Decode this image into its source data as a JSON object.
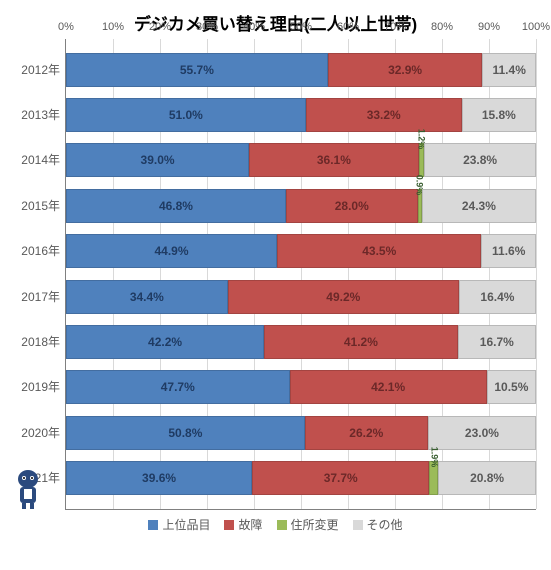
{
  "chart": {
    "type": "stacked-bar-horizontal",
    "title": "デジカメ買い替え理由(二人以上世帯)",
    "title_fontsize": 17,
    "xaxis": {
      "min": 0,
      "max": 100,
      "step": 10,
      "suffix": "%"
    },
    "series": [
      {
        "key": "upper",
        "label": "上位品目",
        "color": "#4f81bd"
      },
      {
        "key": "broken",
        "label": "故障",
        "color": "#c0504d"
      },
      {
        "key": "move",
        "label": "住所変更",
        "color": "#9bbb59"
      },
      {
        "key": "other",
        "label": "その他",
        "color": "#d9d9d9"
      }
    ],
    "label_colors": [
      "#1f3b63",
      "#6b2828",
      "#385d2f",
      "#595959"
    ],
    "tiny_threshold_pct": 3,
    "categories": [
      {
        "label": "2012年",
        "values": [
          55.7,
          32.9,
          0.0,
          11.4
        ]
      },
      {
        "label": "2013年",
        "values": [
          51.0,
          33.2,
          0.0,
          15.8
        ]
      },
      {
        "label": "2014年",
        "values": [
          39.0,
          36.1,
          1.2,
          23.8
        ]
      },
      {
        "label": "2015年",
        "values": [
          46.8,
          28.0,
          0.9,
          24.3
        ]
      },
      {
        "label": "2016年",
        "values": [
          44.9,
          43.5,
          0.0,
          11.6
        ]
      },
      {
        "label": "2017年",
        "values": [
          34.4,
          49.2,
          0.0,
          16.4
        ]
      },
      {
        "label": "2018年",
        "values": [
          42.2,
          41.2,
          0.0,
          16.7
        ]
      },
      {
        "label": "2019年",
        "values": [
          47.7,
          42.1,
          0.0,
          10.5
        ]
      },
      {
        "label": "2020年",
        "values": [
          50.8,
          26.2,
          0.0,
          23.0
        ]
      },
      {
        "label": "2021年",
        "values": [
          39.6,
          37.7,
          1.9,
          20.8
        ]
      }
    ],
    "background_color": "#ffffff",
    "grid_color": "#d9d9d9",
    "axis_font_color": "#595959",
    "bar_label_fontsize": 12
  }
}
